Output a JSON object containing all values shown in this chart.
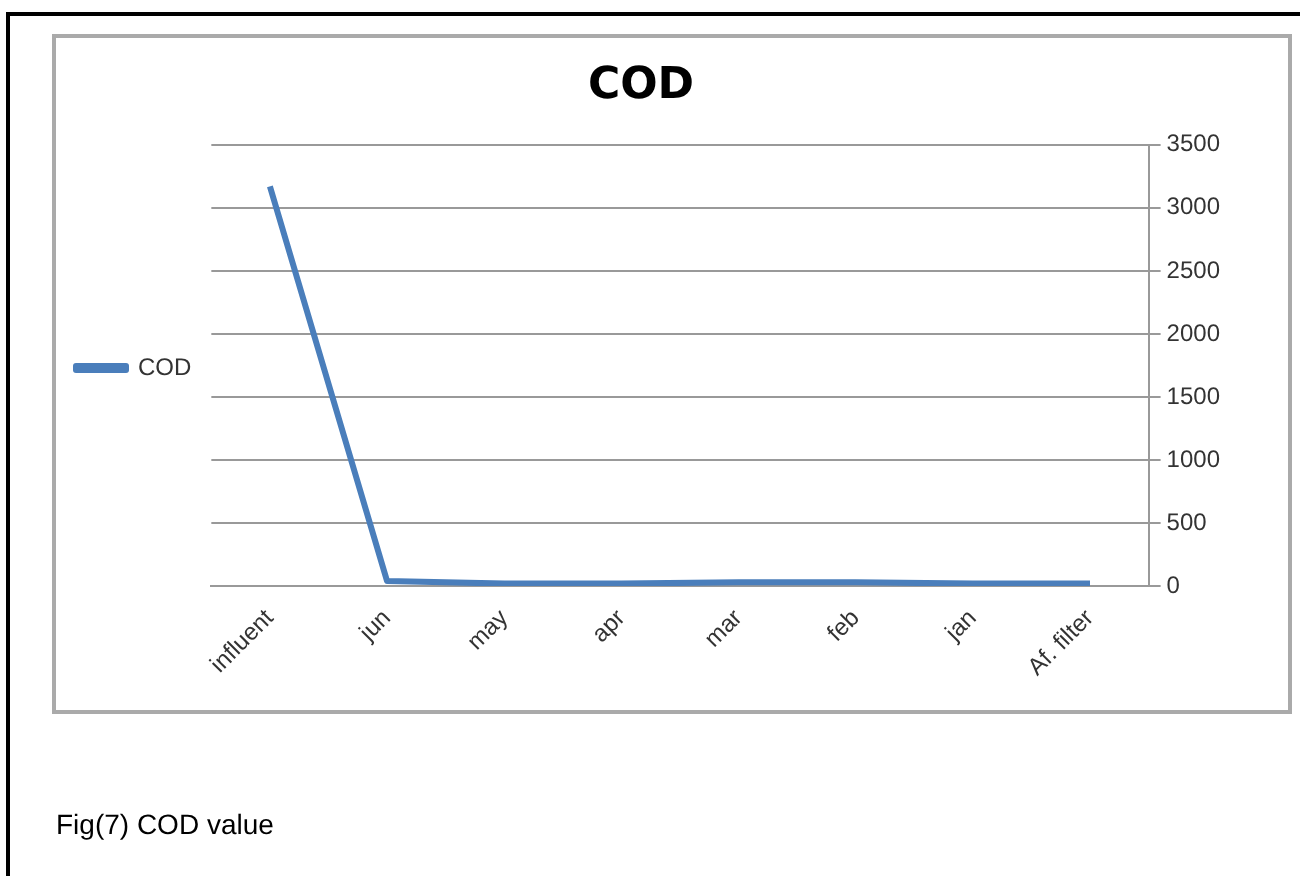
{
  "chart_data": {
    "type": "line",
    "title": "COD",
    "categories": [
      "influent",
      "jun",
      "may",
      "apr",
      "mar",
      "feb",
      "jan",
      "Af. filter"
    ],
    "series": [
      {
        "name": "COD",
        "color": "#4a7ebb",
        "values": [
          3170,
          40,
          20,
          20,
          30,
          30,
          20,
          20
        ]
      }
    ],
    "ylim": [
      0,
      3500
    ],
    "yticks": [
      0,
      500,
      1000,
      1500,
      2000,
      2500,
      3000,
      3500
    ],
    "grid": "y",
    "legend": "left",
    "marker": "none",
    "line_style": "solid",
    "annotations": [
      "Fig(7) COD value"
    ]
  }
}
